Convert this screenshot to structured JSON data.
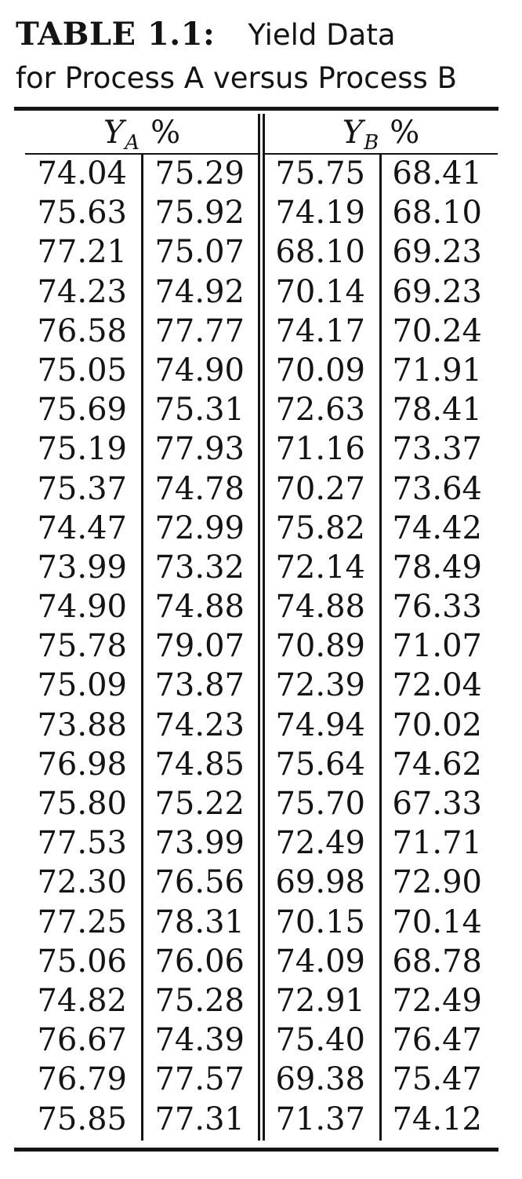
{
  "caption": {
    "label": "TABLE 1.1:",
    "title": "Yield Data",
    "subtitle": "for Process A versus Process B"
  },
  "headers": {
    "a": {
      "symbol": "Y",
      "subscript": "A",
      "unit": "%"
    },
    "b": {
      "symbol": "Y",
      "subscript": "B",
      "unit": "%"
    }
  },
  "columns": [
    [
      "74.04",
      "75.63",
      "77.21",
      "74.23",
      "76.58",
      "75.05",
      "75.69",
      "75.19",
      "75.37",
      "74.47",
      "73.99",
      "74.90",
      "75.78",
      "75.09",
      "73.88",
      "76.98",
      "75.80",
      "77.53",
      "72.30",
      "77.25",
      "75.06",
      "74.82",
      "76.67",
      "76.79",
      "75.85"
    ],
    [
      "75.29",
      "75.92",
      "75.07",
      "74.92",
      "77.77",
      "74.90",
      "75.31",
      "77.93",
      "74.78",
      "72.99",
      "73.32",
      "74.88",
      "79.07",
      "73.87",
      "74.23",
      "74.85",
      "75.22",
      "73.99",
      "76.56",
      "78.31",
      "76.06",
      "75.28",
      "74.39",
      "77.57",
      "77.31"
    ],
    [
      "75.75",
      "74.19",
      "68.10",
      "70.14",
      "74.17",
      "70.09",
      "72.63",
      "71.16",
      "70.27",
      "75.82",
      "72.14",
      "74.88",
      "70.89",
      "72.39",
      "74.94",
      "75.64",
      "75.70",
      "72.49",
      "69.98",
      "70.15",
      "74.09",
      "72.91",
      "75.40",
      "69.38",
      "71.37"
    ],
    [
      "68.41",
      "68.10",
      "69.23",
      "69.23",
      "70.24",
      "71.91",
      "78.41",
      "73.37",
      "73.64",
      "74.42",
      "78.49",
      "76.33",
      "71.07",
      "72.04",
      "70.02",
      "74.62",
      "67.33",
      "71.71",
      "72.90",
      "70.14",
      "68.78",
      "72.49",
      "76.47",
      "75.47",
      "74.12"
    ]
  ]
}
